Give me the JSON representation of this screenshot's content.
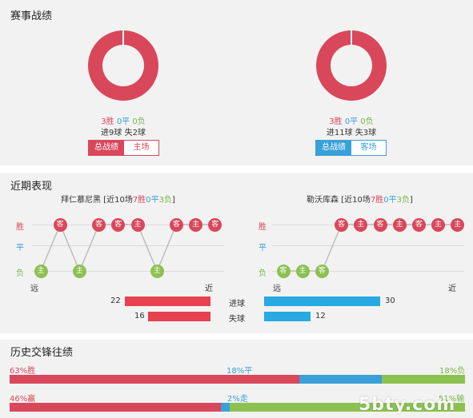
{
  "record": {
    "title": "赛事战绩",
    "home": {
      "w": "3胜",
      "d": "0平",
      "l": "0负",
      "goals": "进9球 失2球",
      "tab_total": "总战绩",
      "tab_venue": "主场",
      "accent": "#d9475a"
    },
    "away": {
      "w": "3胜",
      "d": "0平",
      "l": "0负",
      "goals": "进11球 失3球",
      "tab_total": "总战绩",
      "tab_venue": "客场",
      "accent": "#3aa0d8"
    }
  },
  "recent": {
    "title": "近期表现",
    "home": {
      "name": "拜仁慕尼黑",
      "pre": "[近10场",
      "w": "7胜",
      "d": "0平",
      "l": "3负",
      "post": "]",
      "results": [
        "L",
        "W",
        "L",
        "W",
        "W",
        "W",
        "L",
        "W",
        "W",
        "W"
      ],
      "venues": [
        "主",
        "客",
        "主",
        "客",
        "客",
        "主",
        "主",
        "客",
        "主",
        "客"
      ]
    },
    "away": {
      "name": "勒沃库森",
      "pre": "[近10场",
      "w": "7胜",
      "d": "0平",
      "l": "3负",
      "post": "]",
      "results": [
        "L",
        "L",
        "L",
        "W",
        "W",
        "W",
        "W",
        "W",
        "W",
        "W"
      ],
      "venues": [
        "客",
        "主",
        "客",
        "客",
        "主",
        "客",
        "主",
        "客",
        "主",
        "主"
      ]
    },
    "y_labels": {
      "win": "胜",
      "draw": "平",
      "loss": "负"
    },
    "axis": {
      "far": "远",
      "near": "近"
    },
    "goals_for": {
      "label": "进球",
      "home": 22,
      "away": 30
    },
    "goals_against": {
      "label": "失球",
      "home": 16,
      "away": 12
    },
    "max_goals": 33
  },
  "h2h": {
    "title": "历史交锋往绩",
    "row1": {
      "a": "63%胜",
      "b": "18%平",
      "c": "18%负",
      "p": [
        63,
        18,
        18
      ]
    },
    "row2": {
      "a": "46%赢",
      "b": "2%走",
      "c": "51%输",
      "p": [
        46,
        2,
        51
      ]
    }
  },
  "watermark": "5bty.com",
  "colors": {
    "red": "#d9475a",
    "blue": "#3aa0d8",
    "green": "#8cc152"
  }
}
